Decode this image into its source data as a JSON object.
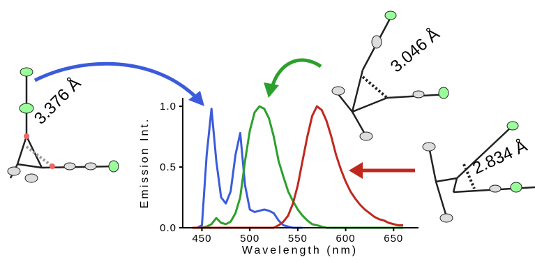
{
  "chart_data": {
    "type": "line",
    "x_label": "Wavelength (nm)",
    "y_label": "Emission Int.",
    "x": [
      440,
      445,
      450,
      455,
      460,
      465,
      470,
      475,
      480,
      485,
      490,
      495,
      500,
      505,
      510,
      515,
      520,
      525,
      530,
      535,
      540,
      545,
      550,
      555,
      560,
      565,
      570,
      575,
      580,
      585,
      590,
      595,
      600,
      605,
      610,
      615,
      620,
      625,
      630,
      635,
      640,
      645,
      650,
      655,
      660
    ],
    "series": [
      {
        "color": "#3b5bdb",
        "values": [
          0,
          0,
          0.02,
          0.6,
          0.98,
          0.55,
          0.25,
          0.2,
          0.3,
          0.6,
          0.78,
          0.35,
          0.15,
          0.13,
          0.14,
          0.15,
          0.14,
          0.12,
          0.06,
          0.02,
          0.01,
          0,
          0,
          0,
          null,
          null,
          null,
          null,
          null,
          null,
          null,
          null,
          null,
          null,
          null,
          null,
          null,
          null,
          null,
          null,
          null,
          null,
          null,
          null,
          null
        ]
      },
      {
        "color": "#2ca02c",
        "values": [
          0,
          0,
          0,
          0.01,
          0.03,
          0.08,
          0.04,
          0.03,
          0.05,
          0.12,
          0.25,
          0.55,
          0.8,
          0.95,
          1.0,
          0.98,
          0.9,
          0.75,
          0.55,
          0.42,
          0.3,
          0.22,
          0.15,
          0.1,
          0.06,
          0.03,
          0.02,
          0.01,
          0,
          0,
          0,
          0,
          0,
          0,
          0,
          0,
          0,
          0,
          0,
          0,
          0,
          0,
          0,
          0,
          0
        ]
      },
      {
        "color": "#c0281e",
        "values": [
          0,
          0,
          0,
          0,
          0,
          0,
          0,
          0,
          0,
          0,
          0,
          0,
          0,
          0,
          0,
          0,
          0,
          0,
          0.02,
          0.05,
          0.1,
          0.2,
          0.35,
          0.55,
          0.75,
          0.92,
          1.0,
          0.97,
          0.88,
          0.75,
          0.6,
          0.48,
          0.38,
          0.3,
          0.24,
          0.19,
          0.15,
          0.12,
          0.09,
          0.07,
          0.06,
          0.04,
          0.03,
          0.02,
          0.02
        ]
      }
    ],
    "xlim": [
      430,
      676
    ],
    "ylim": [
      0,
      1.07
    ],
    "xticks": [
      450,
      500,
      550,
      600,
      650
    ],
    "yticks": [
      {
        "value": 0,
        "label": "0.0"
      },
      {
        "value": 0.5,
        "label": "0.5"
      },
      {
        "value": 1,
        "label": "1.0"
      }
    ],
    "annotations": [
      "3.376 Å",
      "3.046 Å",
      "2.834 Å"
    ]
  }
}
